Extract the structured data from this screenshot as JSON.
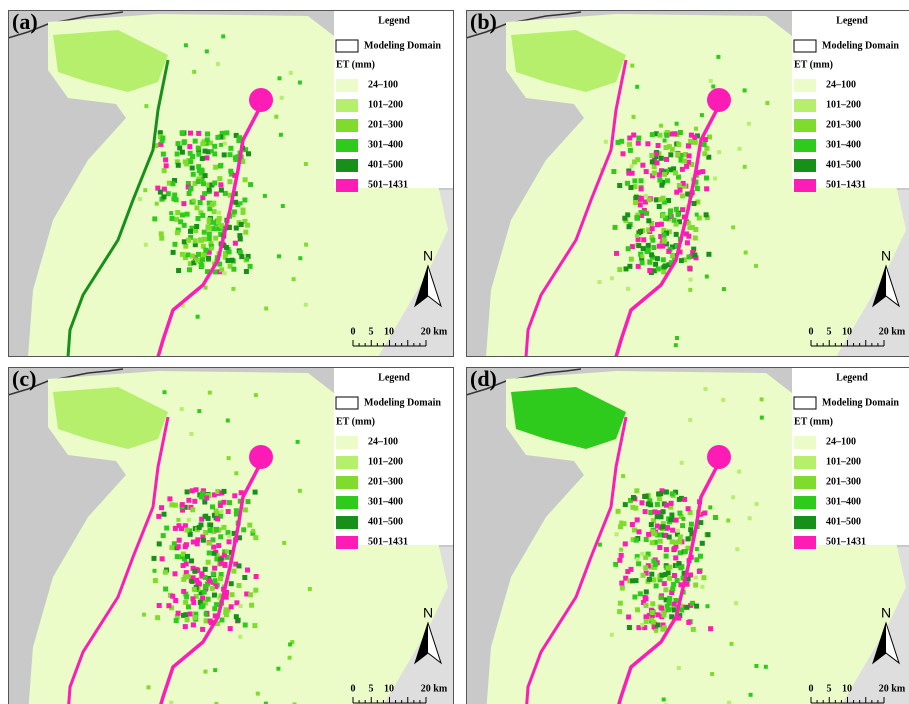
{
  "panels": [
    {
      "label": "(a)"
    },
    {
      "label": "(b)"
    },
    {
      "label": "(c)"
    },
    {
      "label": "(d)"
    }
  ],
  "legend": {
    "title": "Legend",
    "domain_label": "Modeling Domain",
    "variable": "ET (mm)",
    "classes": [
      {
        "label": "24–100",
        "color": "#ebfcc9"
      },
      {
        "label": "101–200",
        "color": "#b6ef6c"
      },
      {
        "label": "201–300",
        "color": "#7fdc2c"
      },
      {
        "label": "301–400",
        "color": "#2fcb1c"
      },
      {
        "label": "401–500",
        "color": "#17901a"
      },
      {
        "label": "501–1431",
        "color": "#ff1bb6"
      }
    ]
  },
  "north": "N",
  "scale": [
    "0",
    "5",
    "10",
    "20 km"
  ]
}
